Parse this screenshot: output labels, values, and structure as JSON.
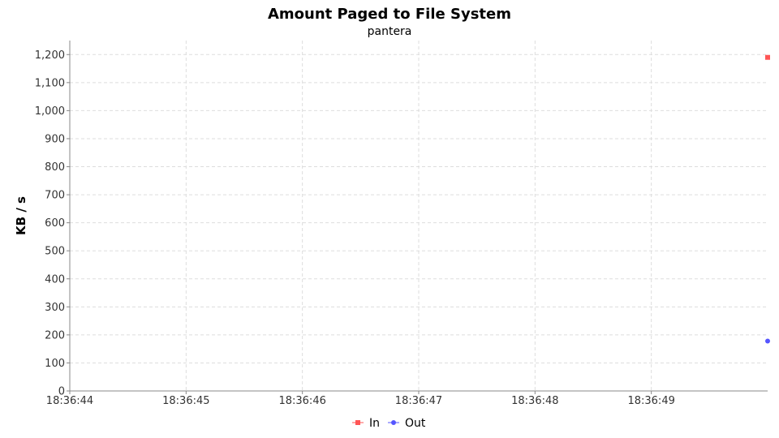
{
  "chart_data": {
    "type": "line",
    "title": "Amount Paged to File System",
    "subtitle": "pantera",
    "xlabel": "",
    "ylabel": "KB / s",
    "x_tick_labels": [
      "18:36:44",
      "18:36:45",
      "18:36:46",
      "18:36:47",
      "18:36:48",
      "18:36:49"
    ],
    "xlim": [
      "18:36:44",
      "18:36:50"
    ],
    "ylim": [
      0,
      1250
    ],
    "y_ticks": [
      0,
      100,
      200,
      300,
      400,
      500,
      600,
      700,
      800,
      900,
      1000,
      1100,
      1200
    ],
    "grid": true,
    "legend_position": "bottom-center",
    "series": [
      {
        "name": "In",
        "color": "#ff5555",
        "marker": "square",
        "x": [
          "18:36:50"
        ],
        "y": [
          1190
        ]
      },
      {
        "name": "Out",
        "color": "#5555ff",
        "marker": "circle",
        "x": [
          "18:36:50"
        ],
        "y": [
          178
        ]
      }
    ]
  }
}
